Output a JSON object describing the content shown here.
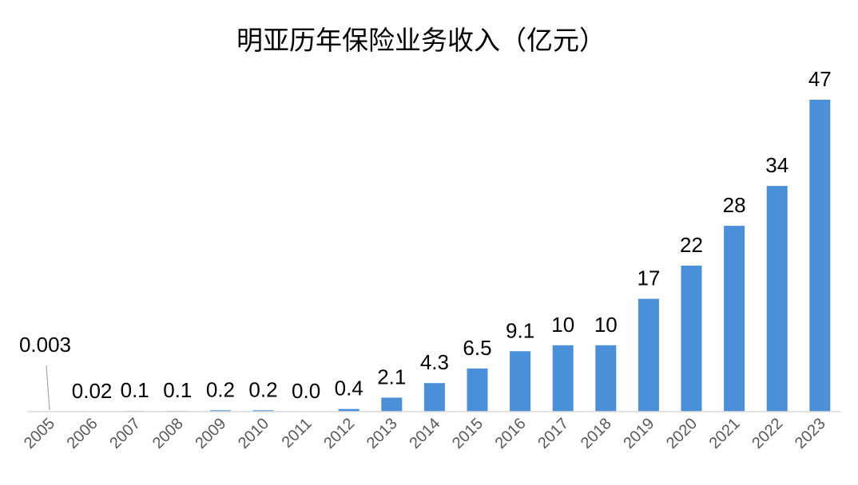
{
  "chart_data": {
    "type": "bar",
    "title": "明亚历年保险业务收入（亿元）",
    "categories": [
      "2005",
      "2006",
      "2007",
      "2008",
      "2009",
      "2010",
      "2011",
      "2012",
      "2013",
      "2014",
      "2015",
      "2016",
      "2017",
      "2018",
      "2019",
      "2020",
      "2021",
      "2022",
      "2023"
    ],
    "values": [
      0.003,
      0.02,
      0.1,
      0.1,
      0.2,
      0.2,
      0.0,
      0.4,
      2.1,
      4.3,
      6.5,
      9.1,
      10,
      10,
      17,
      22,
      28,
      34,
      47
    ],
    "data_labels": [
      "0.003",
      "0.02",
      "0.1",
      "0.1",
      "0.2",
      "0.2",
      "0.0",
      "0.4",
      "2.1",
      "4.3",
      "6.5",
      "9.1",
      "10",
      "10",
      "17",
      "22",
      "28",
      "34",
      "47"
    ],
    "xlabel": "",
    "ylabel": "",
    "ylim": [
      0,
      47
    ],
    "grid": false,
    "legend": "none",
    "bar_color": "#4a90d9",
    "axis_color": "#d9d9d9",
    "tick_label_color": "#595959"
  }
}
